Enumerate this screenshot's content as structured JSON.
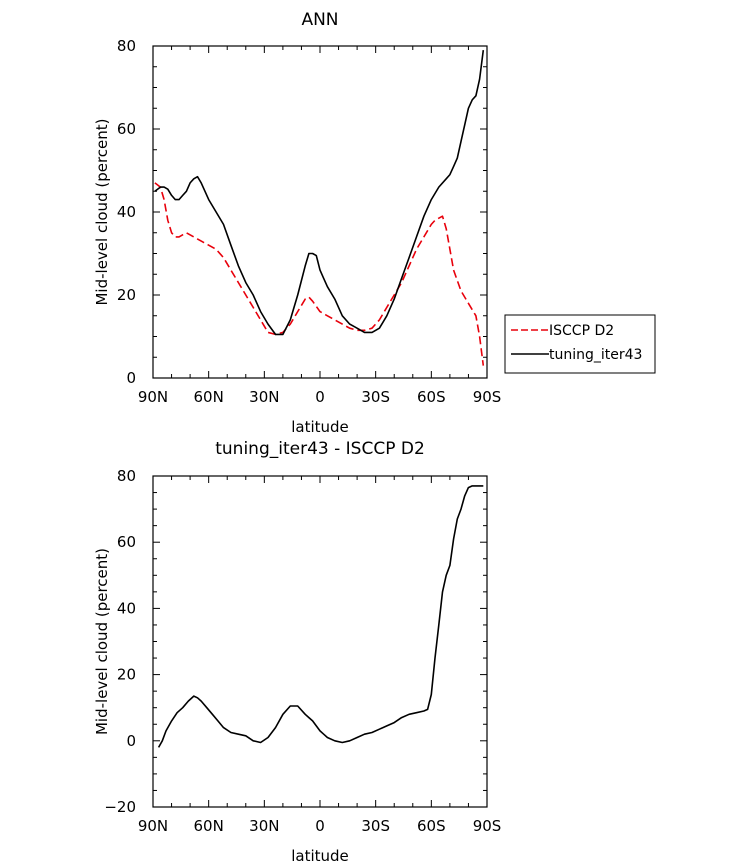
{
  "chart_data": [
    {
      "type": "line",
      "title": "ANN",
      "xlabel": "latitude",
      "ylabel": "Mid-level cloud (percent)",
      "xlim": [
        90,
        -90
      ],
      "ylim": [
        0,
        80
      ],
      "xticks": [
        90,
        60,
        30,
        0,
        -30,
        -60,
        -90
      ],
      "xticklabels": [
        "90N",
        "60N",
        "30N",
        "0",
        "30S",
        "60S",
        "90S"
      ],
      "yticks": [
        0,
        20,
        40,
        60,
        80
      ],
      "yticklabels": [
        "0",
        "20",
        "40",
        "60",
        "80"
      ],
      "legend": {
        "placement": "right",
        "entries": [
          "ISCCP D2",
          "tuning_iter43"
        ]
      },
      "series": [
        {
          "name": "ISCCP D2",
          "color": "#e8000b",
          "dash": "dashed",
          "x": [
            89,
            86,
            84,
            82,
            80,
            78,
            76,
            72,
            68,
            64,
            60,
            56,
            52,
            48,
            44,
            40,
            36,
            32,
            28,
            24,
            20,
            16,
            12,
            8,
            6,
            4,
            0,
            -4,
            -8,
            -12,
            -16,
            -20,
            -24,
            -28,
            -32,
            -36,
            -40,
            -44,
            -48,
            -52,
            -56,
            -60,
            -62,
            -64,
            -66,
            -68,
            -70,
            -72,
            -76,
            -80,
            -84,
            -86,
            -88
          ],
          "y": [
            47,
            46,
            43,
            38,
            35,
            34,
            34,
            35,
            34,
            33,
            32,
            31,
            29,
            26,
            23,
            20,
            17,
            14,
            11,
            10.5,
            11,
            13,
            16,
            19,
            19.5,
            18.5,
            16,
            15,
            14,
            13,
            12,
            11.5,
            11.5,
            12,
            14,
            17,
            20,
            23,
            27,
            31,
            34,
            37,
            38,
            38.5,
            39,
            36,
            31,
            26,
            21,
            18,
            15,
            10,
            3
          ]
        },
        {
          "name": "tuning_iter43",
          "color": "#000000",
          "dash": "solid",
          "x": [
            89,
            86,
            84,
            82,
            80,
            78,
            76,
            74,
            72,
            70,
            68,
            66,
            64,
            60,
            56,
            52,
            48,
            44,
            40,
            36,
            32,
            28,
            24,
            20,
            16,
            12,
            8,
            6,
            4,
            2,
            0,
            -2,
            -4,
            -8,
            -12,
            -16,
            -20,
            -24,
            -28,
            -32,
            -36,
            -40,
            -44,
            -48,
            -52,
            -56,
            -60,
            -64,
            -68,
            -70,
            -72,
            -74,
            -76,
            -78,
            -80,
            -82,
            -84,
            -86,
            -88
          ],
          "y": [
            45,
            46,
            46,
            45.5,
            44,
            43,
            43,
            44,
            45,
            47,
            48,
            48.5,
            47,
            43,
            40,
            37,
            32,
            27,
            23,
            20,
            16,
            13,
            10.5,
            10.5,
            14,
            20,
            27,
            30,
            30,
            29.5,
            26,
            24,
            22,
            19,
            15,
            13,
            12,
            11,
            11,
            12,
            15,
            19,
            24,
            29,
            34,
            39,
            43,
            46,
            48,
            49,
            51,
            53,
            57,
            61,
            65,
            67,
            68,
            72,
            79
          ]
        }
      ]
    },
    {
      "type": "line",
      "title": "tuning_iter43 - ISCCP D2",
      "xlabel": "latitude",
      "ylabel": "Mid-level cloud (percent)",
      "xlim": [
        90,
        -90
      ],
      "ylim": [
        -20,
        80
      ],
      "xticks": [
        90,
        60,
        30,
        0,
        -30,
        -60,
        -90
      ],
      "xticklabels": [
        "90N",
        "60N",
        "30N",
        "0",
        "30S",
        "60S",
        "90S"
      ],
      "yticks": [
        -20,
        0,
        20,
        40,
        60,
        80
      ],
      "yticklabels": [
        "−20",
        "0",
        "20",
        "40",
        "60",
        "80"
      ],
      "series": [
        {
          "color": "#000000",
          "dash": "solid",
          "x": [
            87,
            85,
            83,
            80,
            77,
            74,
            71,
            68,
            66,
            64,
            61,
            58,
            55,
            52,
            48,
            44,
            40,
            36,
            32,
            28,
            24,
            20,
            16,
            12,
            8,
            6,
            4,
            2,
            0,
            -2,
            -4,
            -8,
            -12,
            -16,
            -20,
            -24,
            -28,
            -32,
            -36,
            -40,
            -44,
            -48,
            -52,
            -56,
            -58,
            -60,
            -62,
            -64,
            -66,
            -68,
            -70,
            -72,
            -74,
            -76,
            -78,
            -80,
            -82,
            -84,
            -86,
            -88
          ],
          "y": [
            -2,
            0,
            3,
            6,
            8.5,
            10,
            12,
            13.5,
            13,
            12,
            10,
            8,
            6,
            4,
            2.5,
            2,
            1.5,
            0,
            -0.5,
            1,
            4,
            8,
            10.5,
            10.5,
            8,
            7,
            6,
            4.5,
            3,
            2,
            1,
            0,
            -0.5,
            0,
            1,
            2,
            2.5,
            3.5,
            4.5,
            5.5,
            7,
            8,
            8.5,
            9,
            9.5,
            14,
            25,
            35,
            45,
            50,
            53,
            61,
            67,
            70,
            74,
            76.5,
            77,
            77,
            77,
            77
          ]
        }
      ]
    }
  ]
}
